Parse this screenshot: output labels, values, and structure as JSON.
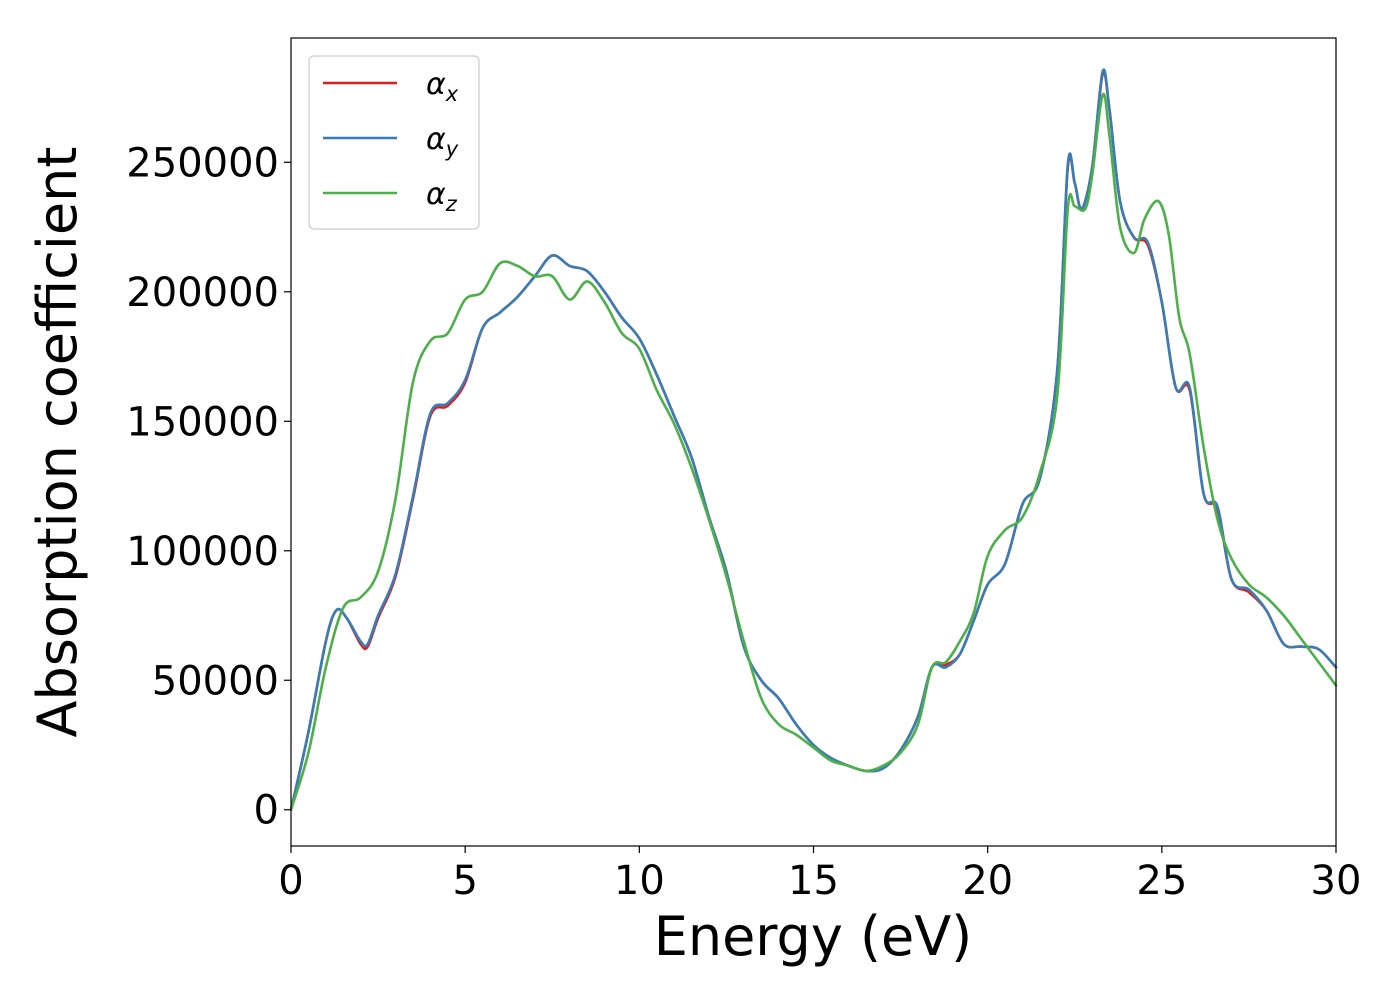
{
  "chart_data": {
    "type": "line",
    "title": "",
    "xlabel": "Energy (eV)",
    "ylabel": "Absorption coefficient",
    "xlim": [
      0,
      30
    ],
    "ylim": [
      -14000,
      298000
    ],
    "xticks": [
      0,
      5,
      10,
      15,
      20,
      25,
      30
    ],
    "xtick_labels": [
      "0",
      "5",
      "10",
      "15",
      "20",
      "25",
      "30"
    ],
    "yticks": [
      0,
      50000,
      100000,
      150000,
      200000,
      250000
    ],
    "ytick_labels": [
      "0",
      "50000",
      "100000",
      "150000",
      "200000",
      "250000"
    ],
    "grid": false,
    "legend_position": "upper-left",
    "series": [
      {
        "name": "αx",
        "symbol": "α",
        "subscript": "x",
        "color": "#e41a1c",
        "x": [
          0,
          0.5,
          1.0,
          1.3,
          1.6,
          2.0,
          2.2,
          2.5,
          3.0,
          3.5,
          4.0,
          4.5,
          5.0,
          5.5,
          6.0,
          6.5,
          7.0,
          7.5,
          8.0,
          8.5,
          9.0,
          9.5,
          10.0,
          10.5,
          11.0,
          11.5,
          12.0,
          12.5,
          13.0,
          13.5,
          14.0,
          14.5,
          15.0,
          15.5,
          16.0,
          16.5,
          17.0,
          17.5,
          18.0,
          18.4,
          18.8,
          19.2,
          19.6,
          20.0,
          20.5,
          21.0,
          21.5,
          22.0,
          22.3,
          22.5,
          22.7,
          23.0,
          23.3,
          23.5,
          23.8,
          24.2,
          24.6,
          25.0,
          25.4,
          25.8,
          26.2,
          26.6,
          27.0,
          27.5,
          28.0,
          28.5,
          29.0,
          29.5,
          30.0
        ],
        "values": [
          0,
          30000,
          65000,
          77000,
          74000,
          64000,
          63000,
          74000,
          90000,
          120000,
          152000,
          156000,
          165000,
          186000,
          192000,
          198000,
          206000,
          214000,
          210000,
          208000,
          200000,
          190000,
          182000,
          168000,
          152000,
          136000,
          113000,
          92000,
          63000,
          50000,
          43000,
          33000,
          25000,
          20000,
          17000,
          15000,
          16000,
          23000,
          36000,
          55000,
          56000,
          60000,
          73000,
          87000,
          95000,
          118000,
          128000,
          170000,
          248000,
          242000,
          232000,
          248000,
          284000,
          270000,
          235000,
          221000,
          218000,
          196000,
          163000,
          162000,
          122000,
          116000,
          89000,
          84000,
          77000,
          64000,
          63000,
          62000,
          55000
        ]
      },
      {
        "name": "αy",
        "symbol": "α",
        "subscript": "y",
        "color": "#377eb8",
        "x": [
          0,
          0.5,
          1.0,
          1.3,
          1.6,
          2.0,
          2.2,
          2.5,
          3.0,
          3.5,
          4.0,
          4.5,
          5.0,
          5.5,
          6.0,
          6.5,
          7.0,
          7.5,
          8.0,
          8.5,
          9.0,
          9.5,
          10.0,
          10.5,
          11.0,
          11.5,
          12.0,
          12.5,
          13.0,
          13.5,
          14.0,
          14.5,
          15.0,
          15.5,
          16.0,
          16.5,
          17.0,
          17.5,
          18.0,
          18.4,
          18.8,
          19.2,
          19.6,
          20.0,
          20.5,
          21.0,
          21.5,
          22.0,
          22.3,
          22.5,
          22.7,
          23.0,
          23.3,
          23.5,
          23.8,
          24.2,
          24.6,
          25.0,
          25.4,
          25.8,
          26.2,
          26.6,
          27.0,
          27.5,
          28.0,
          28.5,
          29.0,
          29.5,
          30.0
        ],
        "values": [
          0,
          30000,
          65000,
          77000,
          74000,
          65000,
          64000,
          75000,
          91000,
          121000,
          153000,
          157000,
          166000,
          186000,
          192000,
          198000,
          206000,
          214000,
          210000,
          208000,
          200000,
          190000,
          182000,
          168000,
          152000,
          136000,
          113000,
          92000,
          63000,
          50000,
          43000,
          33000,
          25000,
          20000,
          17000,
          15000,
          16000,
          23000,
          36000,
          55000,
          55000,
          60000,
          73000,
          87000,
          95000,
          118000,
          128000,
          170000,
          249000,
          242000,
          232000,
          248000,
          285000,
          270000,
          235000,
          221000,
          219000,
          196000,
          163000,
          163000,
          122000,
          117000,
          89000,
          85000,
          77000,
          64000,
          63000,
          62000,
          55000
        ]
      },
      {
        "name": "αz",
        "symbol": "α",
        "subscript": "z",
        "color": "#4daf4a",
        "x": [
          0,
          0.5,
          1.0,
          1.5,
          2.0,
          2.5,
          3.0,
          3.5,
          4.0,
          4.5,
          5.0,
          5.5,
          6.0,
          6.5,
          7.0,
          7.5,
          8.0,
          8.5,
          9.0,
          9.5,
          10.0,
          10.5,
          11.0,
          11.5,
          12.0,
          12.5,
          13.0,
          13.5,
          14.0,
          14.5,
          15.0,
          15.5,
          16.0,
          16.5,
          17.0,
          17.5,
          18.0,
          18.4,
          18.8,
          19.2,
          19.6,
          20.0,
          20.5,
          21.0,
          21.5,
          22.0,
          22.3,
          22.5,
          22.8,
          23.0,
          23.3,
          23.5,
          23.8,
          24.2,
          24.5,
          24.9,
          25.2,
          25.5,
          25.8,
          26.2,
          26.6,
          27.0,
          27.5,
          28.0,
          28.5,
          29.0,
          29.5,
          30.0
        ],
        "values": [
          0,
          22000,
          55000,
          78000,
          82000,
          92000,
          120000,
          165000,
          181000,
          184000,
          197000,
          200000,
          211000,
          210000,
          206000,
          206000,
          197000,
          204000,
          196000,
          184000,
          178000,
          162000,
          149000,
          132000,
          112000,
          90000,
          65000,
          43000,
          33000,
          29000,
          24000,
          19000,
          17000,
          15000,
          17000,
          22000,
          33000,
          55000,
          57000,
          65000,
          76000,
          98000,
          108000,
          113000,
          130000,
          160000,
          232000,
          233000,
          232000,
          245000,
          276000,
          260000,
          225000,
          215000,
          228000,
          235000,
          222000,
          190000,
          176000,
          140000,
          112000,
          97000,
          87000,
          82000,
          75000,
          66000,
          57000,
          48000
        ]
      }
    ]
  }
}
